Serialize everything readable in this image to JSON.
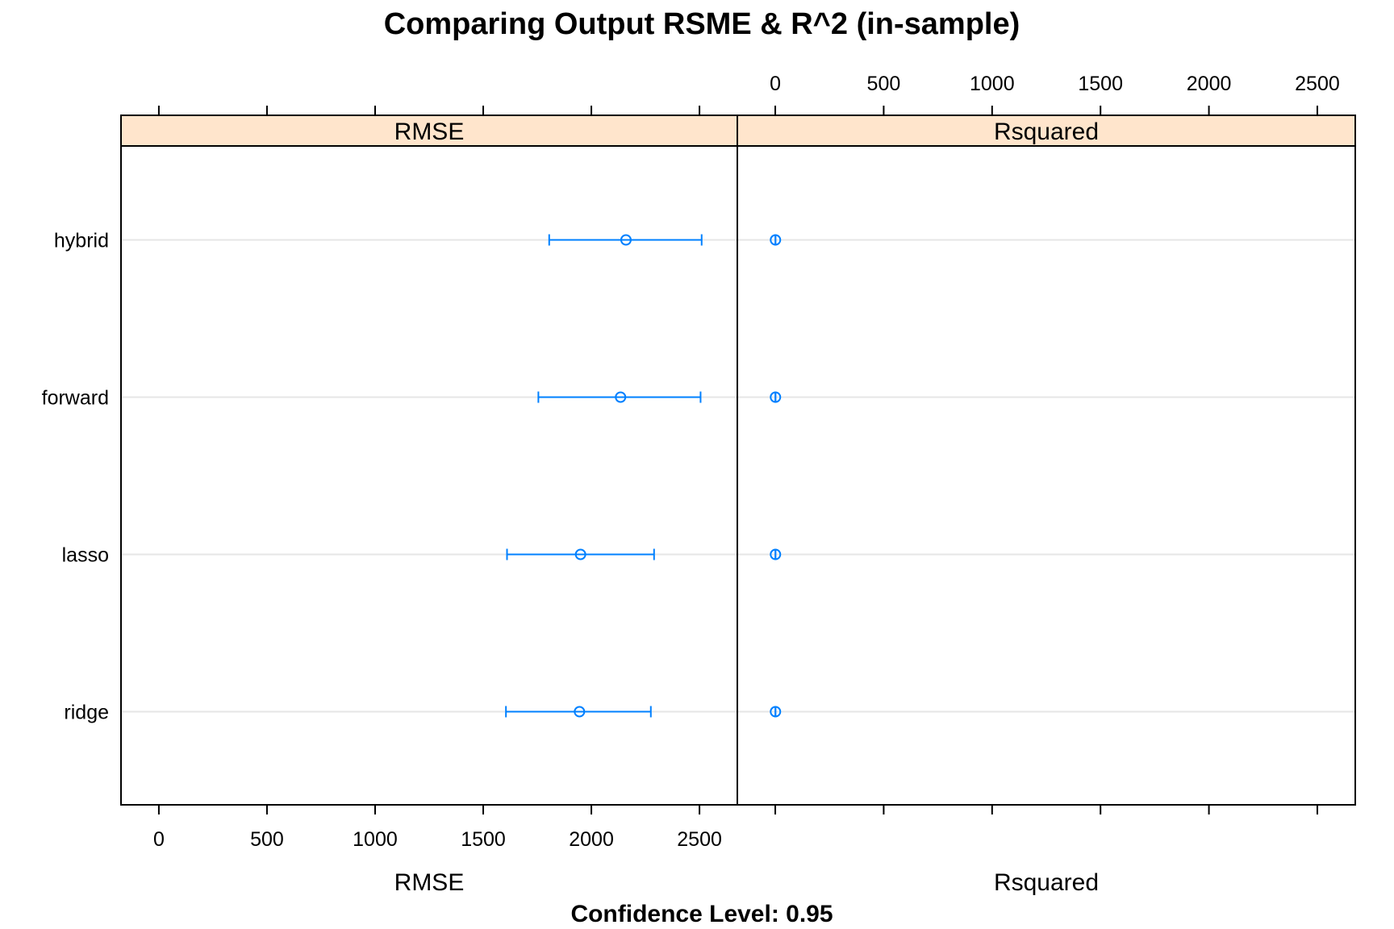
{
  "chart_data": {
    "type": "dotplot-interval",
    "title": "Comparing Output RSME & R^2 (in-sample)",
    "subtitle": "Confidence Level: 0.95",
    "categories": [
      "hybrid",
      "forward",
      "lasso",
      "ridge"
    ],
    "x_ticks": [
      0,
      500,
      1000,
      1500,
      2000,
      2500
    ],
    "xlim": [
      -175,
      2675
    ],
    "grid": "horizontal",
    "colors": {
      "strip_background": "#ffe5cc",
      "series": "#0080ff",
      "gridline": "#e6e6e6"
    },
    "panels": [
      {
        "strip_label": "RMSE",
        "xlabel": "RMSE",
        "series": [
          {
            "category": "hybrid",
            "estimate": 2160,
            "lower": 1805,
            "upper": 2510
          },
          {
            "category": "forward",
            "estimate": 2135,
            "lower": 1755,
            "upper": 2505
          },
          {
            "category": "lasso",
            "estimate": 1950,
            "lower": 1610,
            "upper": 2290
          },
          {
            "category": "ridge",
            "estimate": 1945,
            "lower": 1605,
            "upper": 2275
          }
        ]
      },
      {
        "strip_label": "Rsquared",
        "xlabel": "Rsquared",
        "series": [
          {
            "category": "hybrid",
            "estimate": 0.85,
            "lower": 0.8,
            "upper": 0.9
          },
          {
            "category": "forward",
            "estimate": 0.85,
            "lower": 0.8,
            "upper": 0.9
          },
          {
            "category": "lasso",
            "estimate": 0.86,
            "lower": 0.82,
            "upper": 0.9
          },
          {
            "category": "ridge",
            "estimate": 0.86,
            "lower": 0.82,
            "upper": 0.9
          }
        ]
      }
    ]
  }
}
